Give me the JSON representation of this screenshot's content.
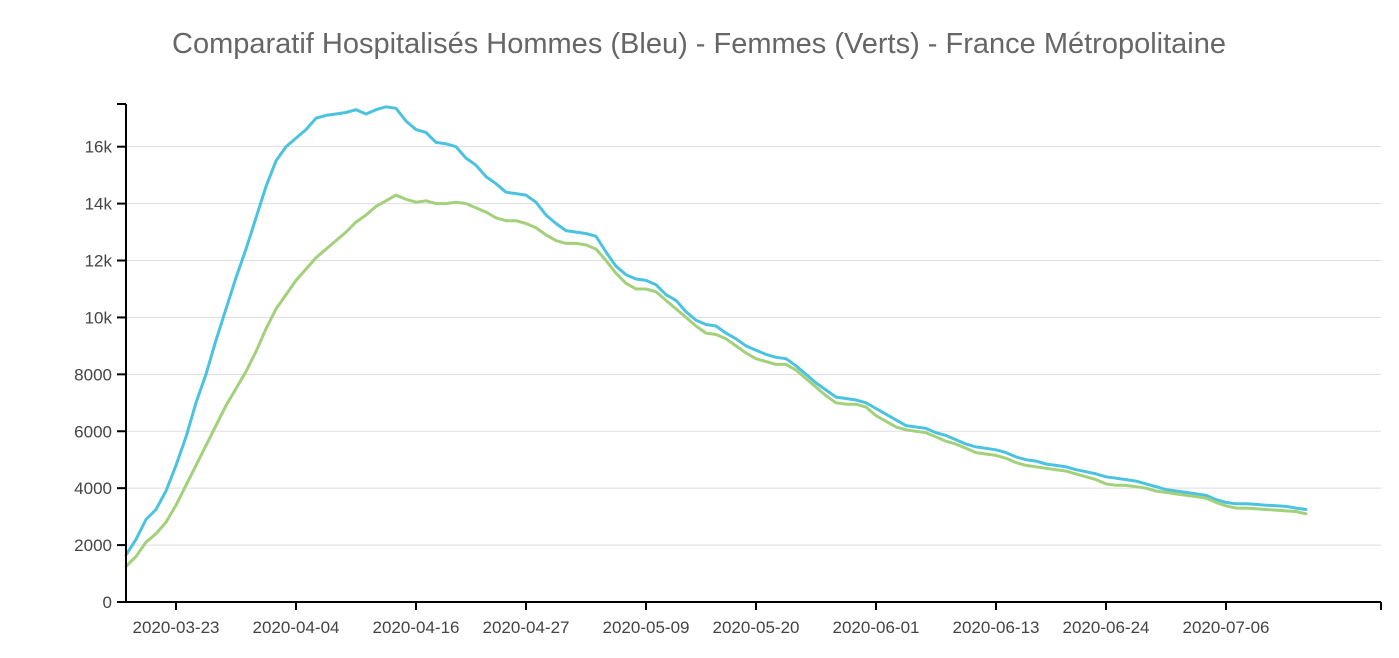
{
  "chart_data": {
    "type": "line",
    "title": "Comparatif Hospitalisés Hommes (Bleu) - Femmes (Verts) - France Métropolitaine",
    "xlabel": "",
    "ylabel": "",
    "x_start": "2020-03-18",
    "x_ticks": [
      "2020-03-23",
      "2020-04-04",
      "2020-04-16",
      "2020-04-27",
      "2020-05-09",
      "2020-05-20",
      "2020-06-01",
      "2020-06-13",
      "2020-06-24",
      "2020-07-06"
    ],
    "y_ticks": [
      "0",
      "2000",
      "4000",
      "6000",
      "8000",
      "10k",
      "12k",
      "14k",
      "16k"
    ],
    "ylim": [
      0,
      17500
    ],
    "grid": true,
    "series": [
      {
        "color": "#4bc3e0",
        "values": [
          1650,
          2200,
          2900,
          3250,
          3900,
          4800,
          5800,
          7000,
          8000,
          9200,
          10300,
          11400,
          12400,
          13500,
          14600,
          15500,
          16000,
          16300,
          16600,
          17000,
          17100,
          17150,
          17200,
          17300,
          17150,
          17300,
          17400,
          17350,
          16900,
          16600,
          16500,
          16150,
          16100,
          16000,
          15600,
          15350,
          14950,
          14700,
          14400,
          14350,
          14300,
          14050,
          13600,
          13300,
          13050,
          13000,
          12950,
          12850,
          12300,
          11800,
          11500,
          11350,
          11300,
          11150,
          10800,
          10600,
          10200,
          9900,
          9750,
          9700,
          9450,
          9250,
          9000,
          8850,
          8700,
          8600,
          8550,
          8300,
          8000,
          7700,
          7450,
          7200,
          7150,
          7100,
          7000,
          6800,
          6600,
          6400,
          6200,
          6150,
          6100,
          5950,
          5850,
          5700,
          5550,
          5450,
          5400,
          5350,
          5250,
          5100,
          5000,
          4950,
          4850,
          4800,
          4750,
          4650,
          4580,
          4500,
          4400,
          4350,
          4300,
          4250,
          4150,
          4050,
          3950,
          3900,
          3850,
          3800,
          3750,
          3600,
          3500,
          3450,
          3450,
          3430,
          3400,
          3380,
          3360,
          3300,
          3250
        ]
      },
      {
        "color": "#a3d07a",
        "values": [
          1250,
          1600,
          2100,
          2400,
          2800,
          3400,
          4100,
          4800,
          5500,
          6200,
          6900,
          7500,
          8100,
          8800,
          9600,
          10300,
          10800,
          11300,
          11700,
          12100,
          12400,
          12700,
          13000,
          13350,
          13600,
          13900,
          14100,
          14300,
          14150,
          14050,
          14100,
          14000,
          14000,
          14050,
          14000,
          13850,
          13700,
          13500,
          13400,
          13400,
          13300,
          13150,
          12900,
          12700,
          12600,
          12600,
          12550,
          12400,
          12000,
          11550,
          11200,
          11000,
          11000,
          10900,
          10600,
          10300,
          10000,
          9700,
          9450,
          9400,
          9250,
          9000,
          8750,
          8550,
          8450,
          8350,
          8350,
          8150,
          7850,
          7550,
          7250,
          7000,
          6950,
          6950,
          6850,
          6550,
          6350,
          6150,
          6050,
          6000,
          5950,
          5800,
          5650,
          5550,
          5400,
          5250,
          5200,
          5150,
          5050,
          4900,
          4800,
          4750,
          4700,
          4650,
          4600,
          4500,
          4400,
          4300,
          4150,
          4100,
          4100,
          4050,
          4000,
          3900,
          3850,
          3800,
          3750,
          3700,
          3650,
          3500,
          3380,
          3300,
          3300,
          3280,
          3250,
          3230,
          3200,
          3180,
          3100
        ]
      }
    ]
  }
}
